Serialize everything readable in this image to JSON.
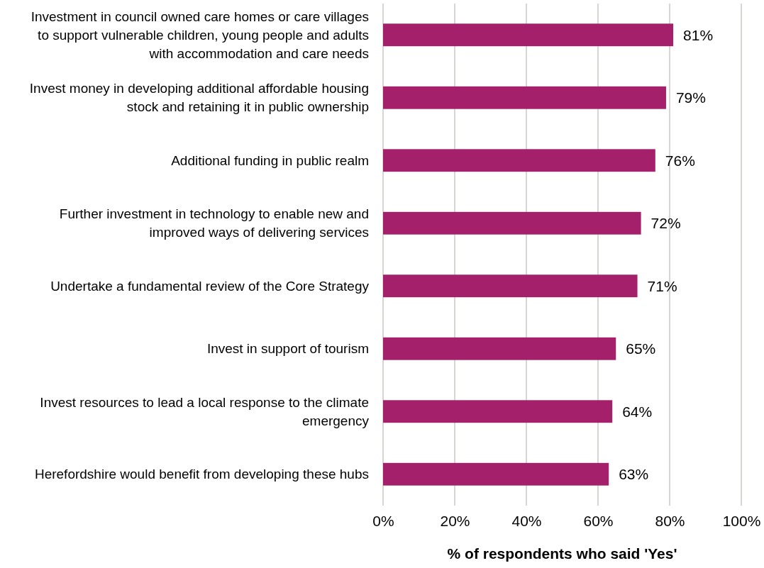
{
  "chart_data": {
    "type": "bar",
    "orientation": "horizontal",
    "xlabel": "% of respondents who said 'Yes'",
    "categories": [
      "Investment in council owned care homes or care villages to support vulnerable children, young people and adults with accommodation and care needs",
      "Invest money in developing additional affordable housing stock and retaining it in public ownership",
      "Additional funding in public realm",
      "Further investment in technology to enable new and improved ways of delivering services",
      "Undertake a fundamental review of the Core Strategy",
      "Invest in support of tourism",
      "Invest resources to lead a local response to the climate emergency",
      "Herefordshire would benefit from developing these hubs"
    ],
    "values": [
      81,
      79,
      76,
      72,
      71,
      65,
      64,
      63
    ],
    "value_labels": [
      "81%",
      "79%",
      "76%",
      "72%",
      "71%",
      "65%",
      "64%",
      "63%"
    ],
    "color": "#a4206a",
    "xlim": [
      0,
      100
    ],
    "xticks": [
      {
        "value": 0,
        "label": "0%"
      },
      {
        "value": 20,
        "label": "20%"
      },
      {
        "value": 40,
        "label": "40%"
      },
      {
        "value": 60,
        "label": "60%"
      },
      {
        "value": 80,
        "label": "80%"
      },
      {
        "value": 100,
        "label": "100%"
      }
    ],
    "grid": "x"
  }
}
